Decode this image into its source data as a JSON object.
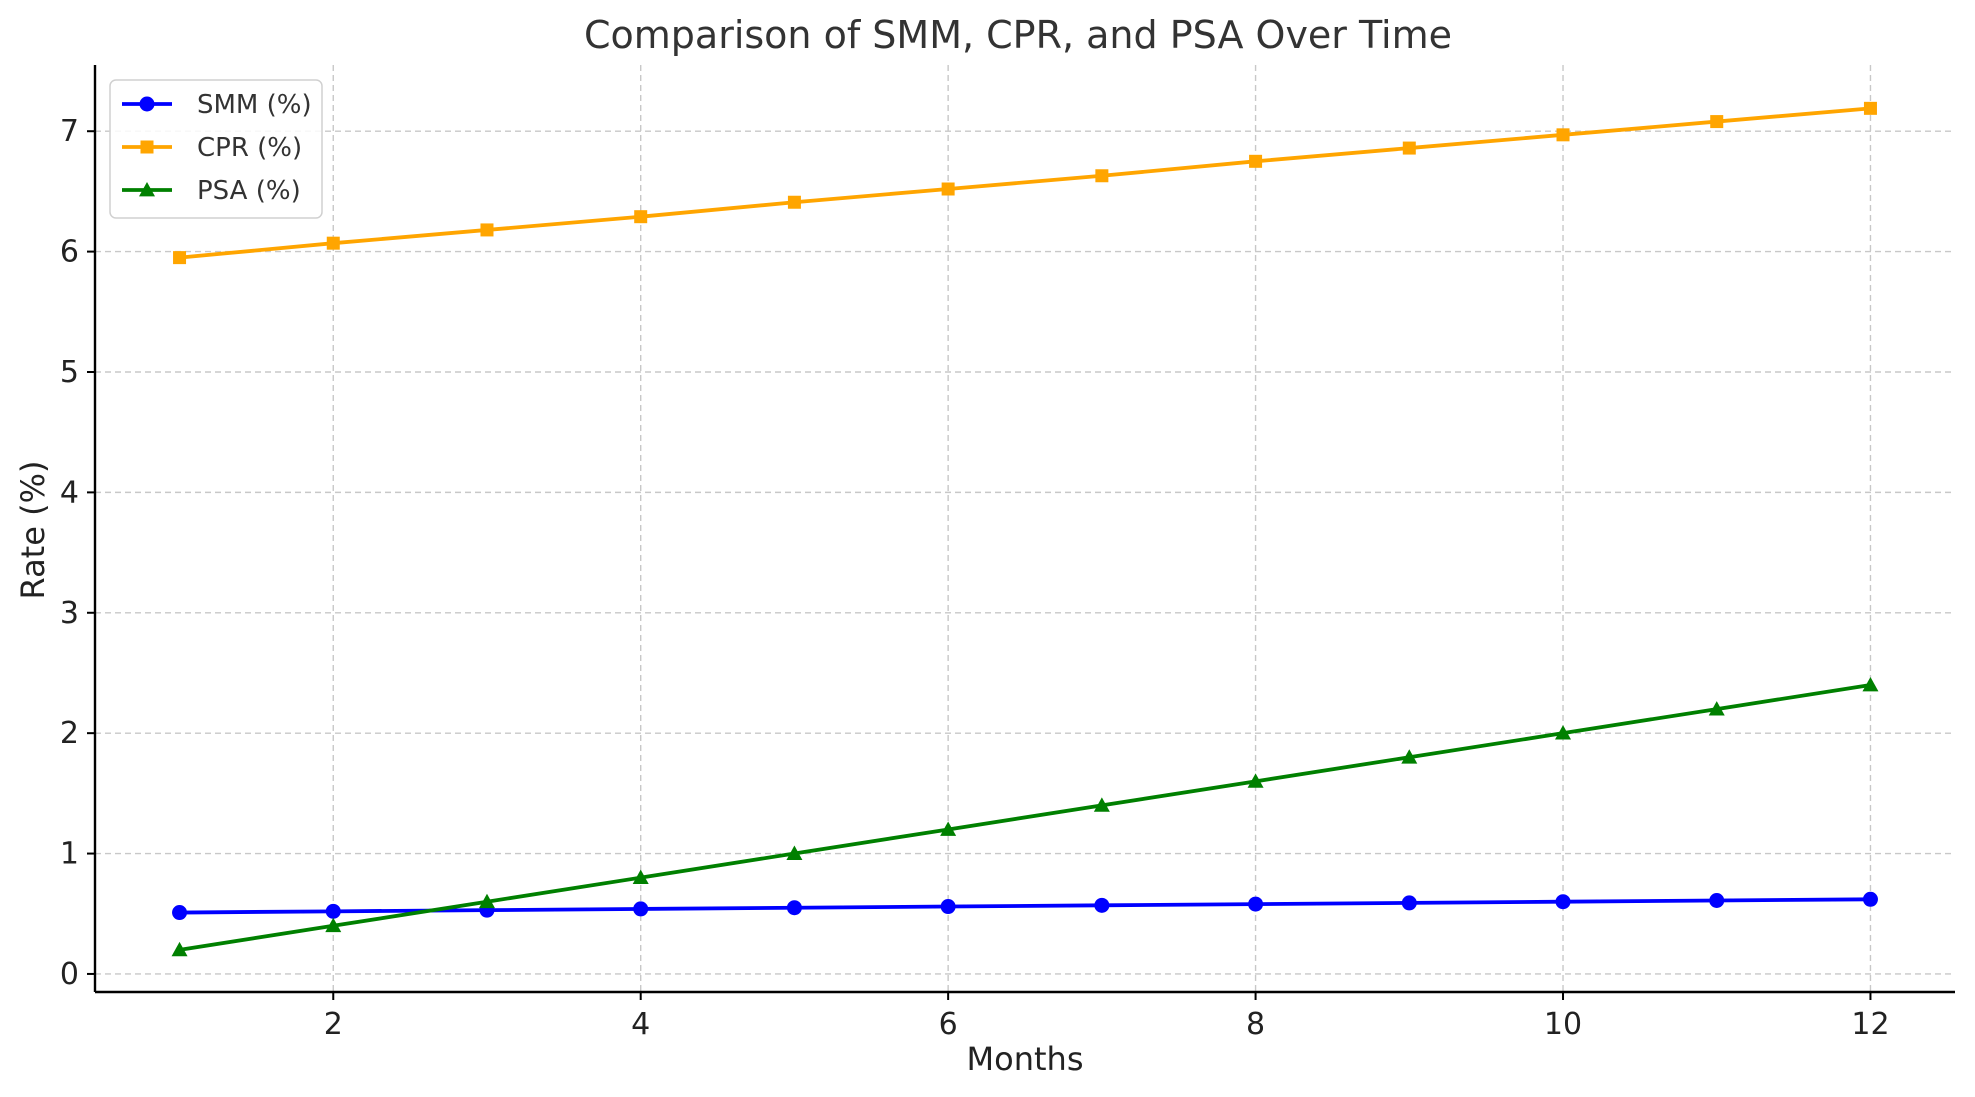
{
  "chart_data": {
    "type": "line",
    "title": "Comparison of SMM, CPR, and PSA Over Time",
    "xlabel": "Months",
    "ylabel": "Rate (%)",
    "x": [
      1,
      2,
      3,
      4,
      5,
      6,
      7,
      8,
      9,
      10,
      11,
      12
    ],
    "xlim": [
      0.45,
      12.55
    ],
    "ylim": [
      -0.15,
      7.55
    ],
    "xticks": [
      2,
      4,
      6,
      8,
      10,
      12
    ],
    "yticks": [
      0,
      1,
      2,
      3,
      4,
      5,
      6,
      7
    ],
    "grid": true,
    "legend_position": "top-left",
    "series": [
      {
        "name": "SMM (%)",
        "color": "#0000ff",
        "marker": "circle",
        "values": [
          0.51,
          0.52,
          0.53,
          0.54,
          0.55,
          0.56,
          0.57,
          0.58,
          0.59,
          0.6,
          0.61,
          0.62
        ]
      },
      {
        "name": "CPR (%)",
        "color": "#ffa500",
        "marker": "square",
        "values": [
          5.95,
          6.07,
          6.18,
          6.29,
          6.41,
          6.52,
          6.63,
          6.75,
          6.86,
          6.97,
          7.08,
          7.19
        ]
      },
      {
        "name": "PSA (%)",
        "color": "#008000",
        "marker": "triangle",
        "values": [
          0.2,
          0.4,
          0.6,
          0.8,
          1.0,
          1.2,
          1.4,
          1.6,
          1.8,
          2.0,
          2.2,
          2.4
        ]
      }
    ]
  }
}
